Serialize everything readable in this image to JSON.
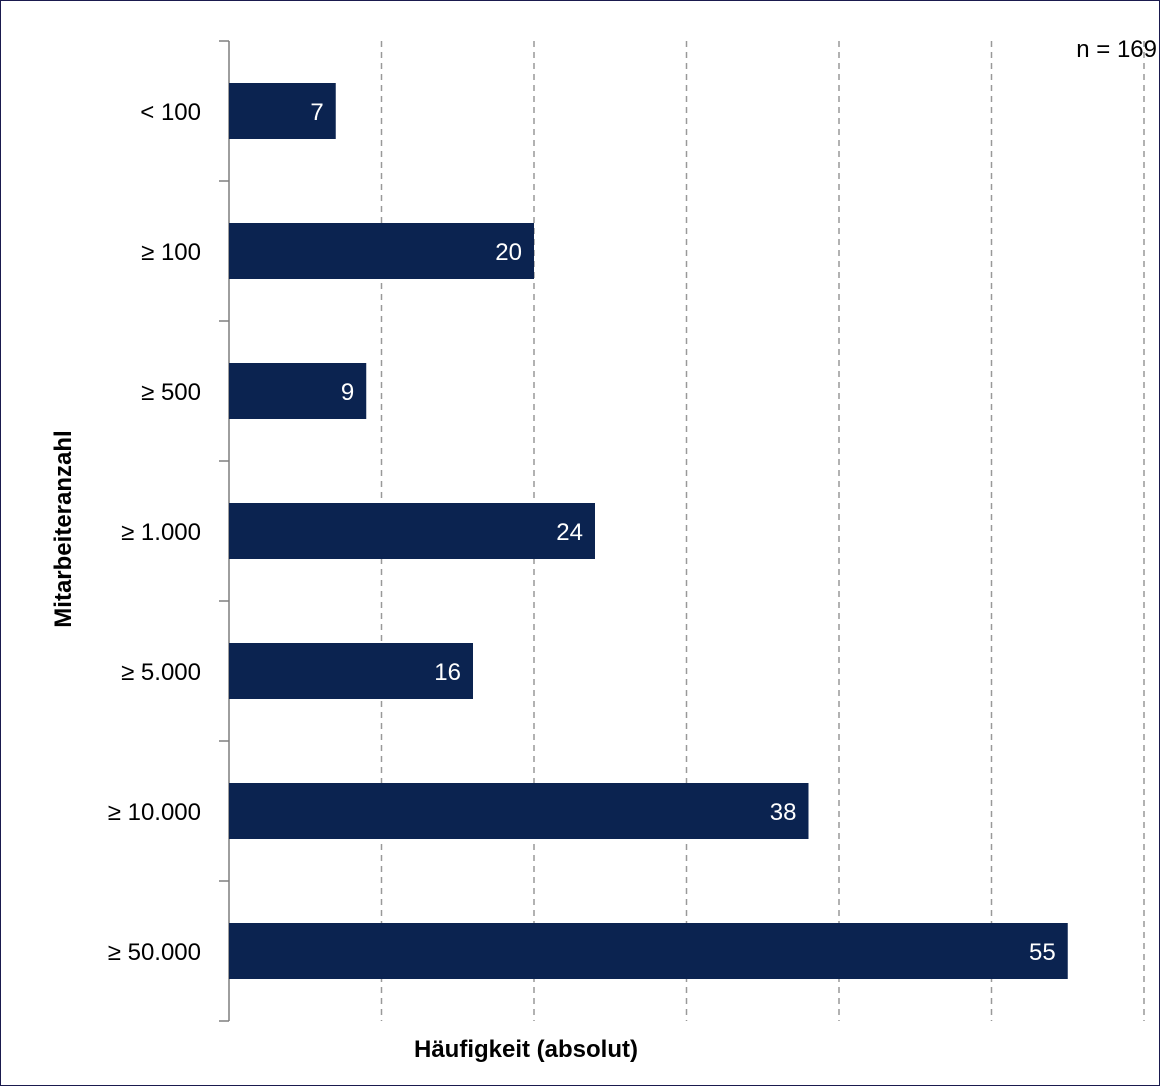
{
  "chart_data": {
    "type": "bar",
    "orientation": "horizontal",
    "categories": [
      "< 100",
      "≥ 100",
      "≥ 500",
      "≥ 1.000",
      "≥ 5.000",
      "≥ 10.000",
      "≥ 50.000"
    ],
    "values": [
      7,
      20,
      9,
      24,
      16,
      38,
      55
    ],
    "xlabel": "Häufigkeit (absolut)",
    "ylabel": "Mitarbeiteranzahl",
    "annotation": "n = 169",
    "xlim": [
      0,
      60
    ],
    "x_gridline_step": 10,
    "grid": "vertical dashed",
    "x_tick_labels_shown": false,
    "bar_color": "#0b2350",
    "value_label_color": "#ffffff",
    "grid_color": "#999999",
    "axis_color": "#7f7f7f"
  }
}
